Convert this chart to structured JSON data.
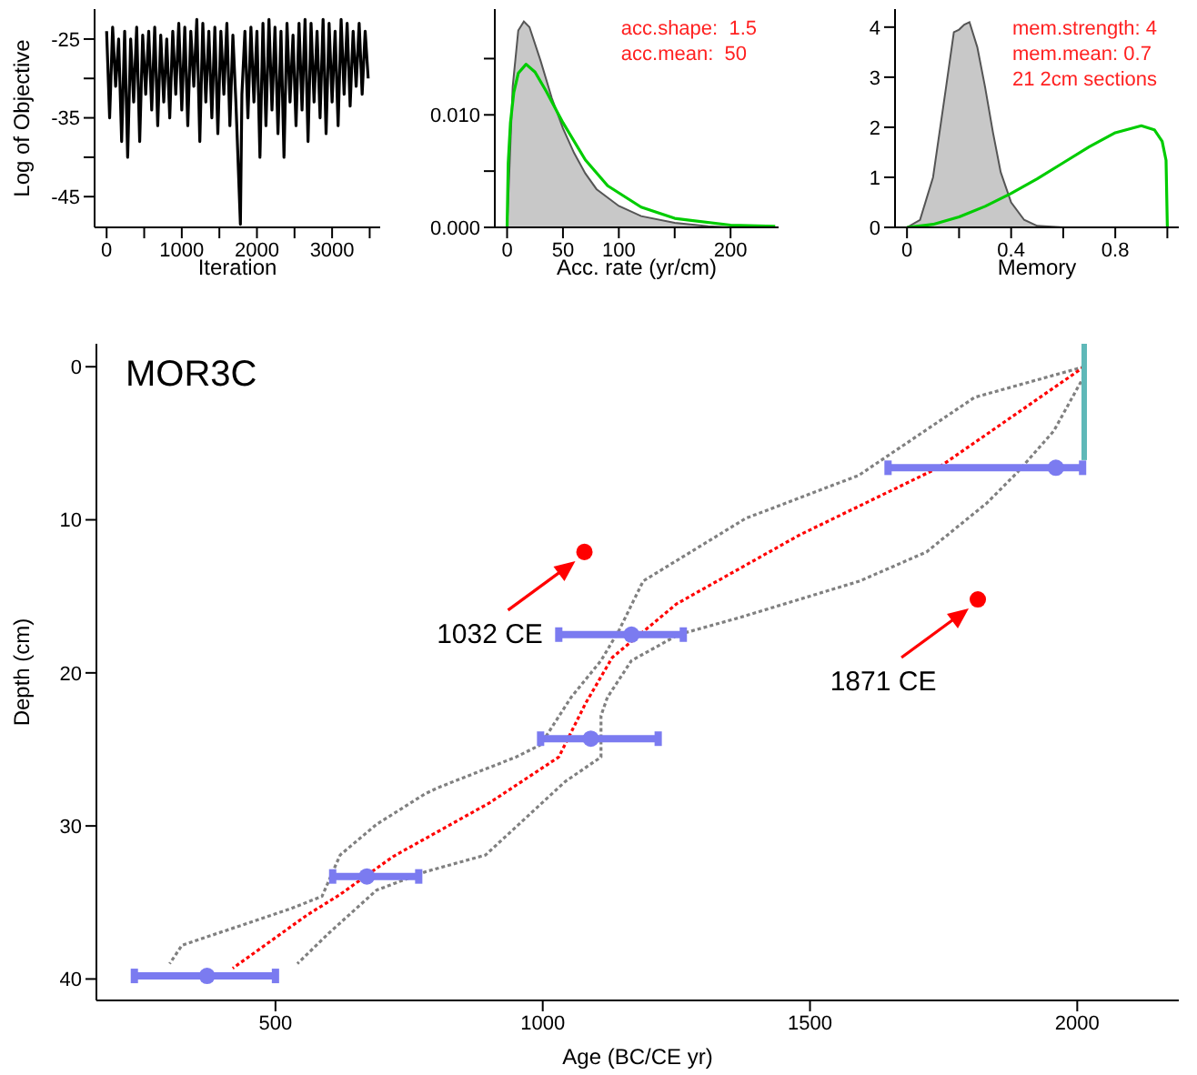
{
  "chart_data": [
    {
      "type": "line",
      "xlabel": "Iteration",
      "ylabel": "Log of Objective",
      "xlim": [
        -160,
        3640
      ],
      "ylim": [
        -48.9,
        -21.2
      ],
      "xticks": [
        0,
        {
          "value": 500,
          "label": null
        },
        1000,
        {
          "value": 1500,
          "label": null
        },
        2000,
        {
          "value": 2500,
          "label": null
        },
        3000,
        {
          "value": 3500,
          "label": null
        }
      ],
      "yticks": [
        -45,
        {
          "value": -40,
          "label": null
        },
        -35,
        {
          "value": -30,
          "label": null
        },
        -25
      ],
      "marker": "none",
      "series": [
        {
          "color": "#000000",
          "x": [
            0,
            40,
            80,
            120,
            160,
            200,
            240,
            280,
            320,
            360,
            400,
            440,
            480,
            520,
            560,
            600,
            640,
            680,
            720,
            760,
            800,
            840,
            880,
            920,
            960,
            1000,
            1040,
            1080,
            1120,
            1160,
            1200,
            1240,
            1280,
            1320,
            1360,
            1400,
            1440,
            1480,
            1520,
            1560,
            1600,
            1640,
            1680,
            1720,
            1780,
            1800,
            1840,
            1880,
            1920,
            1960,
            2000,
            2040,
            2080,
            2120,
            2160,
            2200,
            2240,
            2280,
            2320,
            2360,
            2400,
            2440,
            2480,
            2520,
            2560,
            2600,
            2640,
            2680,
            2720,
            2760,
            2800,
            2840,
            2880,
            2920,
            2960,
            3000,
            3040,
            3080,
            3120,
            3160,
            3200,
            3240,
            3280,
            3320,
            3360,
            3400,
            3440,
            3480
          ],
          "values": [
            -24,
            -35,
            -23.5,
            -31,
            -25,
            -38,
            -24,
            -40,
            -25,
            -33,
            -23.5,
            -38,
            -24.5,
            -32,
            -24,
            -34,
            -23.5,
            -36,
            -24.5,
            -33,
            -25,
            -35,
            -24,
            -32,
            -23,
            -34,
            -23.5,
            -36,
            -24,
            -31,
            -22.5,
            -38,
            -23,
            -33,
            -24,
            -35,
            -23.5,
            -37,
            -24,
            -32,
            -23,
            -36,
            -24.5,
            -33,
            -48.5,
            -32,
            -24,
            -35,
            -23.5,
            -33,
            -24,
            -40,
            -23,
            -36,
            -22.5,
            -34,
            -23.5,
            -37,
            -24,
            -40,
            -23,
            -33,
            -24.5,
            -36,
            -23,
            -34,
            -22.5,
            -38,
            -23,
            -33,
            -24,
            -35,
            -22.5,
            -37,
            -23,
            -33,
            -24,
            -36,
            -22.5,
            -32,
            -23,
            -33.5,
            -24,
            -31,
            -23,
            -32,
            -24,
            -30
          ]
        }
      ]
    },
    {
      "type": "line",
      "xlabel": "Acc. rate (yr/cm)",
      "xlim": [
        -11,
        243
      ],
      "ylim": [
        0,
        0.0194
      ],
      "xticks": [
        0,
        50,
        100,
        {
          "value": 150,
          "label": null
        },
        200
      ],
      "yticks": [
        {
          "value": 0,
          "label": "0.000"
        },
        {
          "value": 0.005,
          "label": null
        },
        {
          "value": 0.01,
          "label": "0.010"
        },
        {
          "value": 0.015,
          "label": null
        }
      ],
      "marker": "none",
      "annotations": [
        "acc.shape:  1.5",
        "acc.mean:  50"
      ],
      "series": [
        {
          "type": "area",
          "color": "#c8c8c8",
          "x": [
            0,
            5,
            10,
            15,
            20,
            30,
            40,
            50,
            60,
            70,
            80,
            100,
            120,
            150,
            180,
            200,
            230
          ],
          "values": [
            0,
            0.0125,
            0.0175,
            0.0183,
            0.0178,
            0.0148,
            0.0115,
            0.0088,
            0.0066,
            0.0048,
            0.0034,
            0.0019,
            0.001,
            0.0004,
            0.0001,
            0,
            0
          ]
        },
        {
          "color": "#00cc00",
          "x": [
            0,
            1,
            3,
            6,
            10,
            17,
            25,
            35,
            50,
            70,
            90,
            120,
            150,
            200,
            240
          ],
          "values": [
            0,
            0.0057,
            0.0093,
            0.012,
            0.0137,
            0.0145,
            0.0138,
            0.0121,
            0.0093,
            0.006,
            0.0037,
            0.0018,
            0.0008,
            0.0002,
            0.0001
          ]
        }
      ]
    },
    {
      "type": "line",
      "xlabel": "Memory",
      "xlim": [
        -0.046,
        1.044
      ],
      "ylim": [
        0,
        4.36
      ],
      "xticks": [
        0,
        {
          "value": 0.2,
          "label": null
        },
        0.4,
        {
          "value": 0.6,
          "label": null
        },
        0.8,
        {
          "value": 1,
          "label": null
        }
      ],
      "yticks": [
        0,
        1,
        2,
        3,
        4
      ],
      "marker": "none",
      "annotations": [
        "mem.strength: 4",
        "mem.mean: 0.7",
        "21 2cm sections"
      ],
      "series": [
        {
          "type": "area",
          "color": "#c8c8c8",
          "x": [
            0,
            0.05,
            0.1,
            0.15,
            0.18,
            0.2,
            0.22,
            0.24,
            0.27,
            0.3,
            0.33,
            0.36,
            0.4,
            0.45,
            0.5,
            0.6
          ],
          "values": [
            0,
            0.15,
            1,
            2.8,
            3.9,
            3.95,
            4.05,
            4.1,
            3.6,
            2.8,
            1.9,
            1.1,
            0.5,
            0.15,
            0.03,
            0
          ]
        },
        {
          "color": "#00cc00",
          "x": [
            0,
            0.1,
            0.2,
            0.3,
            0.4,
            0.5,
            0.6,
            0.7,
            0.8,
            0.9,
            0.95,
            0.98,
            0.995,
            1
          ],
          "values": [
            0,
            0.06,
            0.21,
            0.42,
            0.68,
            0.97,
            1.29,
            1.61,
            1.89,
            2.03,
            1.95,
            1.72,
            1.34,
            0
          ]
        }
      ]
    },
    {
      "type": "line",
      "title": "MOR3C",
      "xlabel": "Age (BC/CE yr)",
      "ylabel": "Depth (cm)",
      "xlim": [
        165,
        2190
      ],
      "ylim": [
        41.4,
        -1.5
      ],
      "xticks": [
        500,
        1000,
        1500,
        2000
      ],
      "yticks": [
        0,
        10,
        20,
        30,
        40
      ],
      "annotations": [
        {
          "text": "1032 CE",
          "x": 1078,
          "y": 12.1
        },
        {
          "text": "1871 CE",
          "x": 1814,
          "y": 15.2
        }
      ],
      "series": [
        {
          "color": "#808080",
          "line_style": "dotted",
          "marker": "none",
          "x": [
            2013,
            1808,
            1591,
            1380,
            1188,
            1143,
            1109,
            1053,
            996,
            950,
            804,
            780,
            689,
            621,
            587,
            529,
            325,
            302
          ],
          "values": [
            0,
            2,
            7.1,
            9.9,
            14,
            17.2,
            19.2,
            21.6,
            24.7,
            25.5,
            27.5,
            27.9,
            29.9,
            31.9,
            34.6,
            35.4,
            37.8,
            39
          ]
        },
        {
          "color": "#808080",
          "line_style": "dotted",
          "marker": "none",
          "x": [
            2013,
            1956,
            1888,
            1831,
            1718,
            1593,
            1367,
            1254,
            1166,
            1121,
            1109,
            1109,
            1042,
            893,
            780,
            689,
            600,
            541
          ],
          "values": [
            0.6,
            4.2,
            6.9,
            8.9,
            12.1,
            14,
            16.4,
            17.5,
            19.2,
            21.6,
            22.8,
            25.5,
            27.1,
            31.9,
            33,
            34.2,
            37,
            39
          ]
        },
        {
          "color": "#ff0000",
          "line_style": "dotted",
          "marker": "none",
          "x": [
            2013,
            1740,
            1480,
            1250,
            1130,
            1080,
            1030,
            900,
            720,
            620,
            560,
            420
          ],
          "values": [
            0,
            6.6,
            11,
            15.5,
            19,
            22,
            25.5,
            28.5,
            32,
            34.5,
            35.8,
            39.3
          ]
        },
        {
          "color": "#5fb8b8",
          "marker": "none",
          "x": [
            2013,
            2013
          ],
          "values": [
            -1.5,
            6.1
          ]
        },
        {
          "type": "scatter",
          "color": "#7b7bf0",
          "marker": "circle",
          "x": [
            1960,
            1166,
            1090,
            671,
            372
          ],
          "values": [
            6.6,
            17.5,
            24.3,
            33.3,
            39.8
          ],
          "xerrors": [
            [
              1646,
              2010
            ],
            [
              1030,
              1263
            ],
            [
              996,
              1216
            ],
            [
              607,
              768
            ],
            [
              236,
              500
            ]
          ]
        },
        {
          "type": "scatter",
          "color": "#ff0000",
          "marker": "circle",
          "x": [
            1078,
            1814
          ],
          "values": [
            12.1,
            15.2
          ]
        }
      ]
    }
  ]
}
